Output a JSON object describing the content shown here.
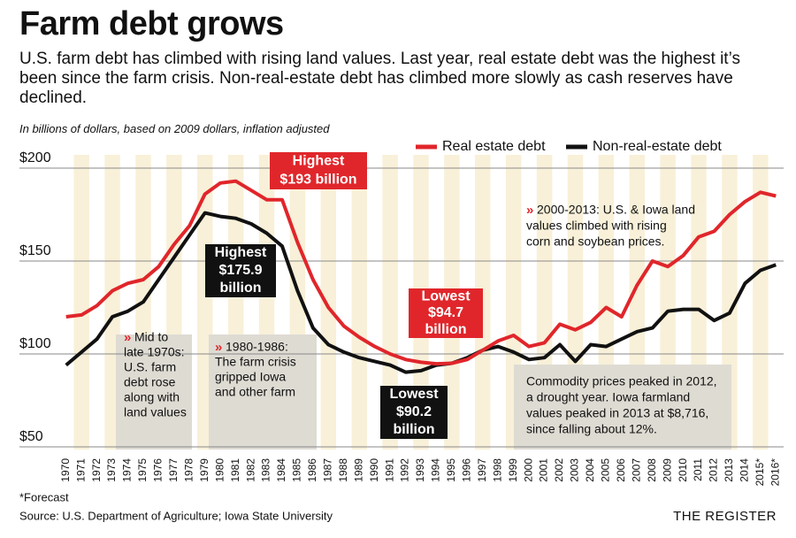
{
  "chart_data": {
    "type": "line",
    "title": "Farm debt grows",
    "subtitle": "U.S. farm debt has climbed with rising land values. Last year, real estate debt was the highest it’s been since the farm crisis. Non-real-estate debt has climbed more slowly as cash reserves have declined.",
    "unit_note": "In billions of dollars, based on 2009 dollars, inflation adjusted",
    "categories": [
      "1970",
      "1971",
      "1972",
      "1973",
      "1974",
      "1975",
      "1976",
      "1977",
      "1978",
      "1979",
      "1980",
      "1981",
      "1982",
      "1983",
      "1984",
      "1985",
      "1986",
      "1987",
      "1988",
      "1989",
      "1990",
      "1991",
      "1992",
      "1993",
      "1994",
      "1995",
      "1996",
      "1997",
      "1998",
      "1999",
      "2000",
      "2001",
      "2002",
      "2003",
      "2004",
      "2005",
      "2006",
      "2007",
      "2008",
      "2009",
      "2010",
      "2011",
      "2012",
      "2013",
      "2014",
      "2015*",
      "2016*"
    ],
    "series": [
      {
        "name": "Real estate debt",
        "color": "#e0262b",
        "values": [
          120,
          121,
          126,
          134,
          138,
          140,
          147,
          159,
          169,
          186,
          192,
          193,
          188,
          183,
          183,
          160,
          140,
          125,
          115,
          109,
          104,
          100,
          97,
          95.5,
          94.7,
          95,
          97,
          102,
          107,
          110,
          104,
          106,
          116,
          113,
          117,
          125,
          120,
          137,
          150,
          147,
          153,
          163,
          166,
          175,
          182,
          187,
          185
        ]
      },
      {
        "name": "Non-real-estate debt",
        "color": "#111111",
        "values": [
          94,
          101,
          108,
          120,
          123,
          128,
          140,
          152,
          164,
          175.9,
          174,
          173,
          170,
          165,
          158,
          134,
          114,
          105,
          101,
          98,
          96,
          94,
          90.2,
          91,
          94,
          95,
          98,
          102,
          104,
          101,
          97,
          98,
          105,
          96,
          105,
          104,
          108,
          112,
          114,
          123,
          124,
          124,
          118,
          122,
          138,
          145,
          148
        ]
      }
    ],
    "ylim": [
      50,
      200
    ],
    "yticks": [
      {
        "value": 50,
        "label": "$50"
      },
      {
        "value": 100,
        "label": "$100"
      },
      {
        "value": 150,
        "label": "$150"
      },
      {
        "value": 200,
        "label": "$200"
      }
    ],
    "grid": true,
    "legend": "top-right",
    "callouts": [
      {
        "lines": [
          "Highest",
          "$193 billion"
        ],
        "color": "#e0262b"
      },
      {
        "lines": [
          "Highest",
          "$175.9",
          "billion"
        ],
        "color": "#111111"
      },
      {
        "lines": [
          "Lowest",
          "$94.7",
          "billion"
        ],
        "color": "#e0262b"
      },
      {
        "lines": [
          "Lowest",
          "$90.2",
          "billion"
        ],
        "color": "#111111"
      }
    ],
    "bullet": "»",
    "annotations": [
      {
        "bulleted": true,
        "lines": [
          "Mid to",
          "late 1970s:",
          "U.S. farm",
          "debt rose",
          "along with",
          "land values"
        ]
      },
      {
        "bulleted": true,
        "lines": [
          "1980-1986:",
          "The farm crisis",
          "gripped Iowa",
          "and other farm"
        ]
      },
      {
        "bulleted": true,
        "lines": [
          "2000-2013: U.S. & Iowa land",
          "values climbed with rising",
          "corn and soybean prices."
        ]
      },
      {
        "bulleted": false,
        "lines": [
          "Commodity prices peaked in 2012,",
          "a drought year. Iowa farmland",
          "values peaked in 2013 at $8,716,",
          "since falling about 12%."
        ]
      }
    ],
    "footnote": "*Forecast",
    "source": "Source: U.S. Department of Agriculture; Iowa State University",
    "credit": "THE REGISTER"
  }
}
